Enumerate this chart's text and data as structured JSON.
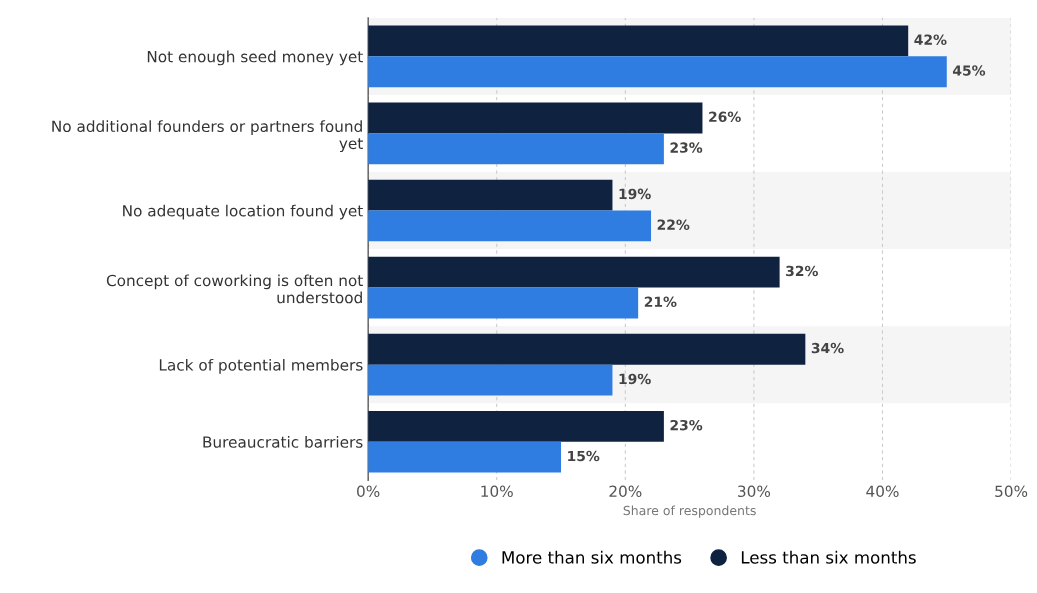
{
  "chart_data": {
    "type": "bar",
    "orientation": "horizontal",
    "xlabel": "Share of respondents",
    "categories": [
      "Not enough seed money yet",
      "No additional founders or partners found\nyet",
      "No adequate location found yet",
      "Concept of coworking is often not\nunderstood",
      "Lack of potential members",
      "Bureaucratic barriers"
    ],
    "series": [
      {
        "name": "Less than six months",
        "color": "#0f2341",
        "values": [
          42,
          26,
          19,
          32,
          34,
          23
        ],
        "value_labels": [
          "42%",
          "26%",
          "19%",
          "32%",
          "34%",
          "23%"
        ]
      },
      {
        "name": "More than six months",
        "color": "#2f7de1",
        "values": [
          45,
          23,
          22,
          21,
          19,
          15
        ],
        "value_labels": [
          "45%",
          "23%",
          "22%",
          "21%",
          "19%",
          "15%"
        ]
      }
    ],
    "xlim": [
      0,
      50
    ],
    "xticks": [
      {
        "value": 0,
        "label": "0%"
      },
      {
        "value": 10,
        "label": "10%"
      },
      {
        "value": 20,
        "label": "20%"
      },
      {
        "value": 30,
        "label": "30%"
      },
      {
        "value": 40,
        "label": "40%"
      },
      {
        "value": 50,
        "label": "50%"
      }
    ],
    "grid": "x",
    "legend": "bottom"
  }
}
